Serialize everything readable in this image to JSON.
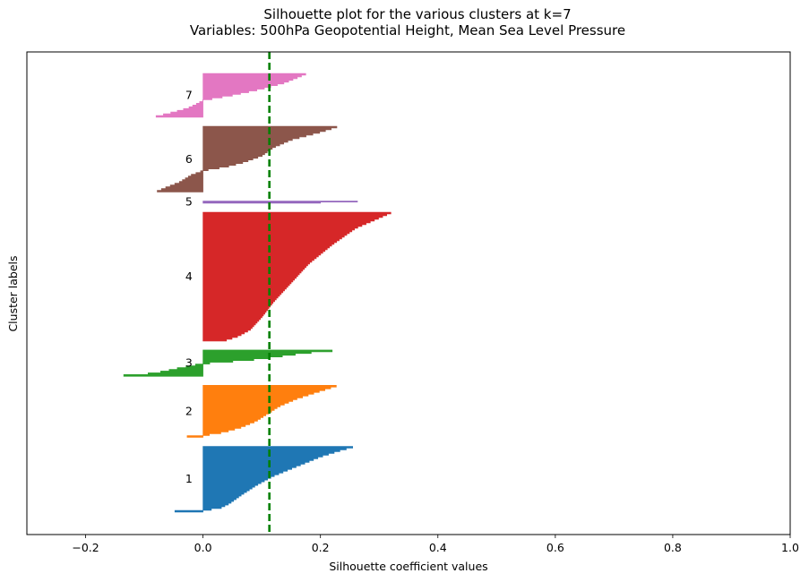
{
  "chart_data": {
    "type": "silhouette",
    "title": "Silhouette plot for the various clusters at k=7",
    "subtitle": "Variables: 500hPa Geopotential Height, Mean Sea Level Pressure",
    "xlabel": "Silhouette coefficient values",
    "ylabel": "Cluster labels",
    "xlim": [
      -0.3,
      1.0
    ],
    "xticks": [
      -0.2,
      0.0,
      0.2,
      0.4,
      0.6,
      0.8,
      1.0
    ],
    "xtick_labels": [
      "−0.2",
      "0.0",
      "0.2",
      "0.4",
      "0.6",
      "0.8",
      "1.0"
    ],
    "yticks": [],
    "grid": false,
    "average_silhouette": 0.113,
    "average_line_color": "#008000",
    "clusters": [
      {
        "label": "1",
        "color": "#1f77b4",
        "size": 120,
        "profile": [
          [
            0.0,
            0.255
          ],
          [
            0.05,
            0.235
          ],
          [
            0.15,
            0.2
          ],
          [
            0.3,
            0.16
          ],
          [
            0.45,
            0.12
          ],
          [
            0.6,
            0.09
          ],
          [
            0.75,
            0.065
          ],
          [
            0.88,
            0.045
          ],
          [
            0.95,
            0.03
          ],
          [
            0.985,
            0.005
          ],
          [
            0.99,
            -0.03
          ],
          [
            1.0,
            -0.048
          ]
        ]
      },
      {
        "label": "2",
        "color": "#ff7f0e",
        "size": 95,
        "profile": [
          [
            0.0,
            0.227
          ],
          [
            0.1,
            0.2
          ],
          [
            0.25,
            0.16
          ],
          [
            0.4,
            0.13
          ],
          [
            0.55,
            0.11
          ],
          [
            0.7,
            0.09
          ],
          [
            0.82,
            0.065
          ],
          [
            0.92,
            0.035
          ],
          [
            0.975,
            0.005
          ],
          [
            0.98,
            -0.01
          ],
          [
            1.0,
            -0.027
          ]
        ]
      },
      {
        "label": "3",
        "color": "#2ca02c",
        "size": 48,
        "profile": [
          [
            0.0,
            0.22
          ],
          [
            0.1,
            0.17
          ],
          [
            0.2,
            0.14
          ],
          [
            0.35,
            0.09
          ],
          [
            0.45,
            0.04
          ],
          [
            0.52,
            0.0
          ],
          [
            0.6,
            -0.02
          ],
          [
            0.72,
            -0.045
          ],
          [
            0.85,
            -0.07
          ],
          [
            0.95,
            -0.1
          ],
          [
            1.0,
            -0.135
          ]
        ]
      },
      {
        "label": "4",
        "color": "#d62728",
        "size": 235,
        "profile": [
          [
            0.0,
            0.32
          ],
          [
            0.04,
            0.3
          ],
          [
            0.12,
            0.26
          ],
          [
            0.25,
            0.22
          ],
          [
            0.4,
            0.18
          ],
          [
            0.55,
            0.15
          ],
          [
            0.7,
            0.12
          ],
          [
            0.82,
            0.1
          ],
          [
            0.92,
            0.08
          ],
          [
            0.97,
            0.06
          ],
          [
            1.0,
            0.04
          ]
        ]
      },
      {
        "label": "5",
        "color": "#9467bd",
        "size": 4,
        "profile": [
          [
            0.0,
            0.263
          ],
          [
            0.5,
            0.22
          ],
          [
            1.0,
            0.2
          ]
        ]
      },
      {
        "label": "6",
        "color": "#8c564b",
        "size": 120,
        "profile": [
          [
            0.0,
            0.228
          ],
          [
            0.08,
            0.2
          ],
          [
            0.2,
            0.15
          ],
          [
            0.32,
            0.12
          ],
          [
            0.45,
            0.1
          ],
          [
            0.55,
            0.07
          ],
          [
            0.62,
            0.04
          ],
          [
            0.68,
            0.0
          ],
          [
            0.75,
            -0.02
          ],
          [
            0.86,
            -0.04
          ],
          [
            0.95,
            -0.065
          ],
          [
            1.0,
            -0.078
          ]
        ]
      },
      {
        "label": "7",
        "color": "#e377c2",
        "size": 80,
        "profile": [
          [
            0.0,
            0.175
          ],
          [
            0.2,
            0.14
          ],
          [
            0.35,
            0.1
          ],
          [
            0.5,
            0.05
          ],
          [
            0.62,
            0.0
          ],
          [
            0.7,
            -0.01
          ],
          [
            0.8,
            -0.025
          ],
          [
            0.9,
            -0.05
          ],
          [
            1.0,
            -0.08
          ]
        ]
      }
    ]
  }
}
